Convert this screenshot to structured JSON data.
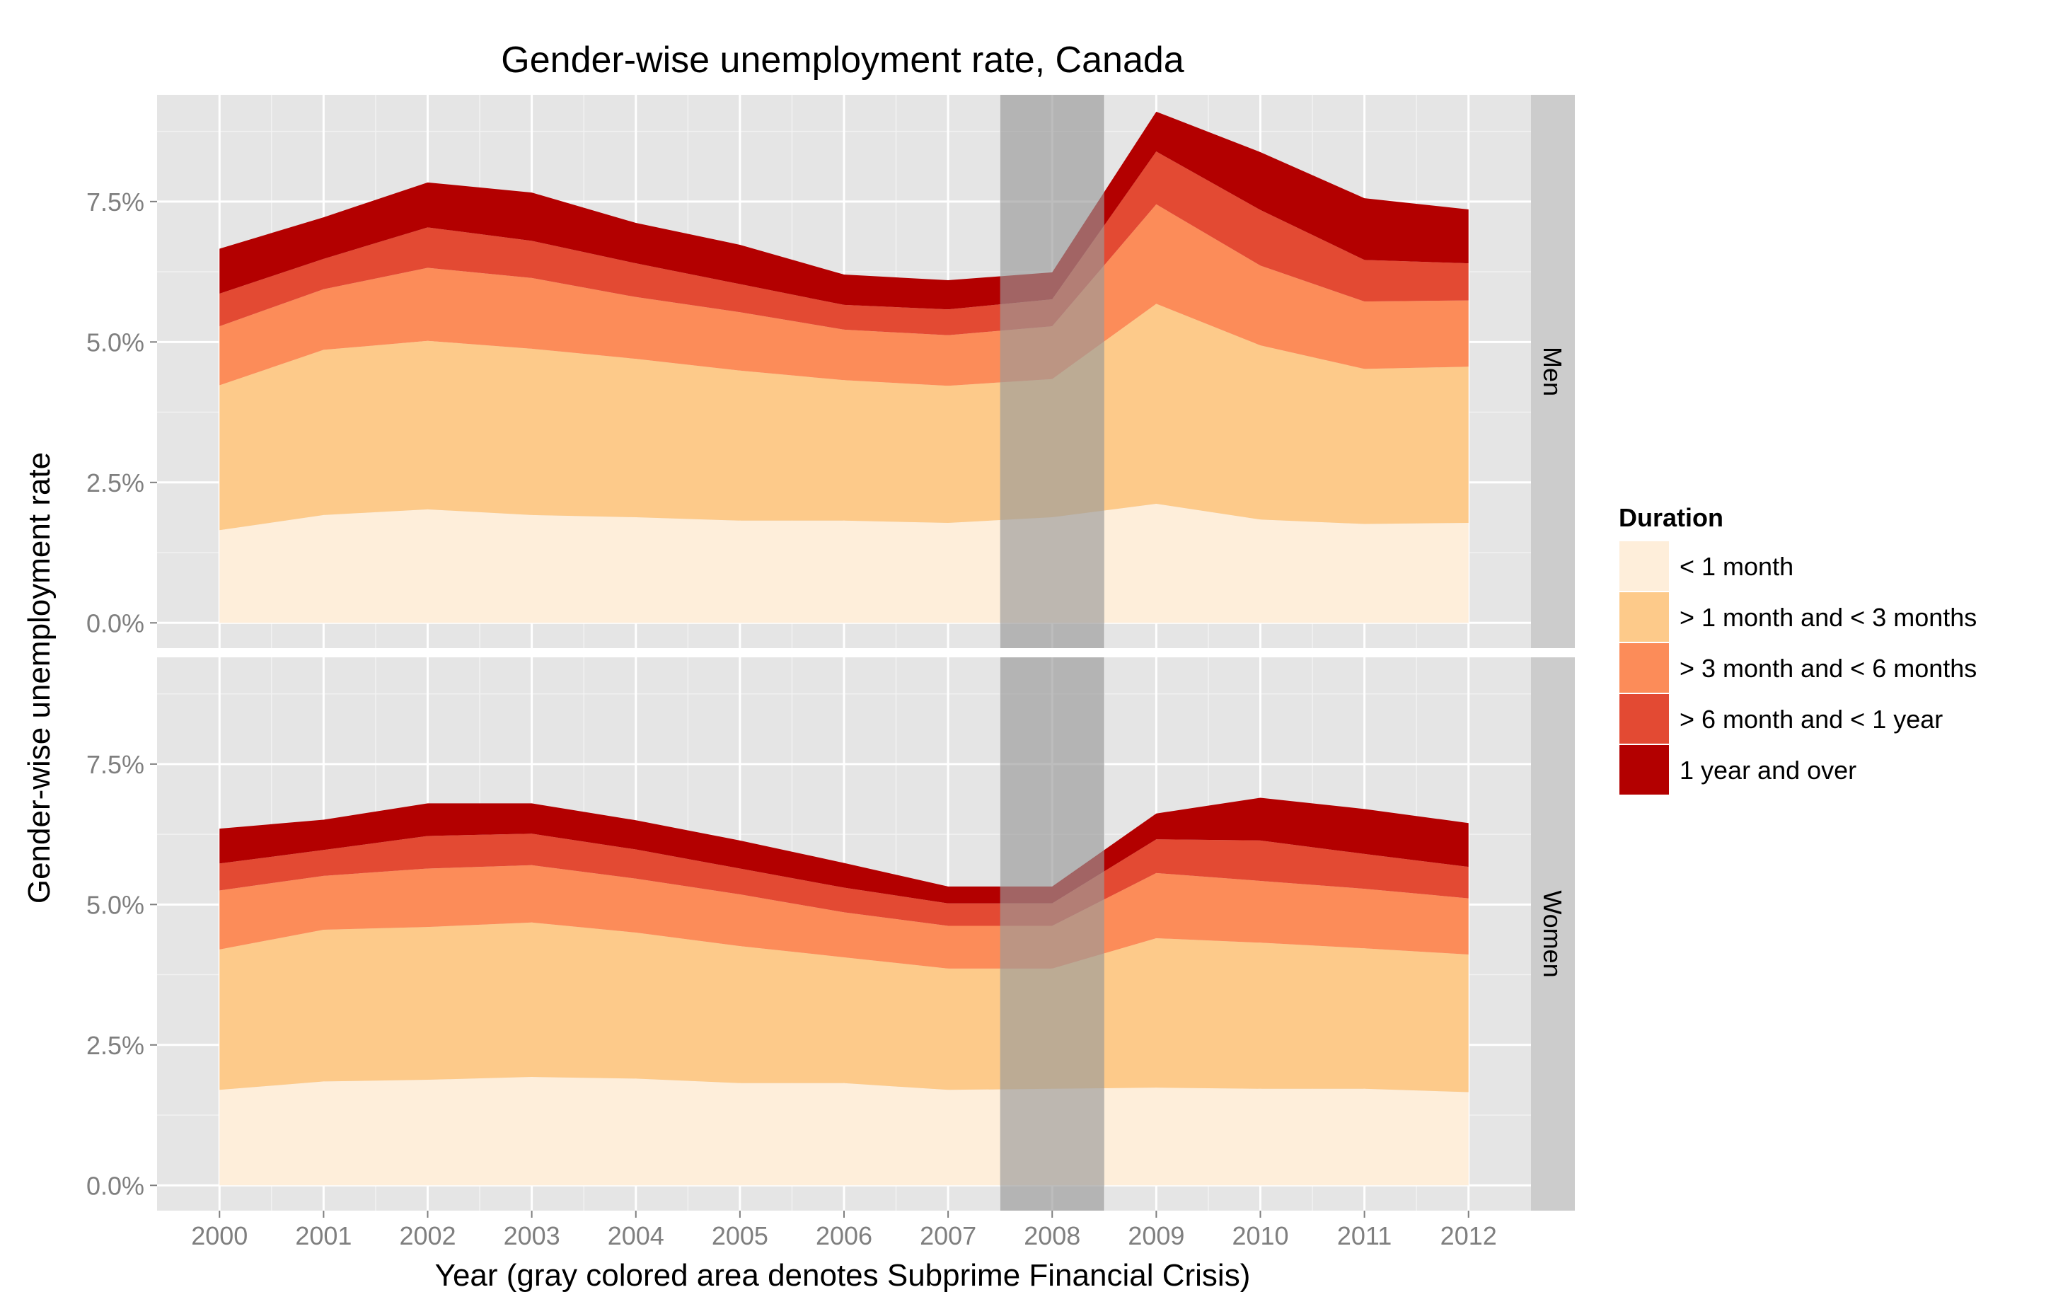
{
  "chart_data": {
    "type": "area",
    "stacked": true,
    "title": "Gender-wise unemployment rate, Canada",
    "xlabel": "Year (gray colored area denotes Subprime Financial Crisis)",
    "ylabel": "Gender-wise unemployment rate",
    "x": [
      2000,
      2001,
      2002,
      2003,
      2004,
      2005,
      2006,
      2007,
      2008,
      2009,
      2010,
      2011,
      2012
    ],
    "x_ticks": [
      "2000",
      "2001",
      "2002",
      "2003",
      "2004",
      "2005",
      "2006",
      "2007",
      "2008",
      "2009",
      "2010",
      "2011",
      "2012"
    ],
    "y_ticks": [
      "0.0%",
      "2.5%",
      "5.0%",
      "7.5%"
    ],
    "ylim": [
      -0.45,
      9.4
    ],
    "grid": true,
    "legend": {
      "title": "Duration",
      "position": "right",
      "items": [
        "< 1 month",
        "> 1 month and < 3 months",
        "> 3 month and < 6 months",
        "> 6 month and < 1 year",
        "1 year and over"
      ]
    },
    "series_colors": [
      "#FEEEDA",
      "#FDCA8A",
      "#FC8C59",
      "#E34A33",
      "#B30000"
    ],
    "highlight_region": {
      "from": 2007.5,
      "to": 2008.5,
      "color": "#999999"
    },
    "panels": [
      {
        "label": "Men",
        "series": [
          {
            "name": "< 1 month",
            "values": [
              1.65,
              1.92,
              2.02,
              1.92,
              1.88,
              1.82,
              1.82,
              1.78,
              1.88,
              2.12,
              1.84,
              1.76,
              1.78
            ]
          },
          {
            "name": "> 1 month and < 3 months",
            "values": [
              2.58,
              2.94,
              3.0,
              2.96,
              2.82,
              2.67,
              2.5,
              2.44,
              2.46,
              3.56,
              3.1,
              2.76,
              2.78
            ]
          },
          {
            "name": "> 3 month and < 6 months",
            "values": [
              1.05,
              1.08,
              1.3,
              1.26,
              1.1,
              1.04,
              0.9,
              0.9,
              0.94,
              1.77,
              1.42,
              1.2,
              1.18
            ]
          },
          {
            "name": "> 6 month and < 1 year",
            "values": [
              0.58,
              0.54,
              0.72,
              0.66,
              0.6,
              0.5,
              0.44,
              0.46,
              0.48,
              0.94,
              0.99,
              0.74,
              0.66
            ]
          },
          {
            "name": "1 year and over",
            "values": [
              0.8,
              0.74,
              0.8,
              0.86,
              0.72,
              0.7,
              0.54,
              0.52,
              0.48,
              0.71,
              1.03,
              1.1,
              0.96
            ]
          }
        ]
      },
      {
        "label": "Women",
        "series": [
          {
            "name": "< 1 month",
            "values": [
              1.7,
              1.85,
              1.88,
              1.93,
              1.9,
              1.82,
              1.82,
              1.7,
              1.72,
              1.74,
              1.72,
              1.72,
              1.66
            ]
          },
          {
            "name": "> 1 month and < 3 months",
            "values": [
              2.5,
              2.7,
              2.72,
              2.75,
              2.6,
              2.44,
              2.24,
              2.16,
              2.14,
              2.66,
              2.6,
              2.5,
              2.45
            ]
          },
          {
            "name": "> 3 month and < 6 months",
            "values": [
              1.05,
              0.96,
              1.04,
              1.02,
              0.96,
              0.92,
              0.8,
              0.76,
              0.76,
              1.16,
              1.1,
              1.06,
              1.0
            ]
          },
          {
            "name": "> 6 month and < 1 year",
            "values": [
              0.48,
              0.46,
              0.58,
              0.56,
              0.52,
              0.46,
              0.44,
              0.4,
              0.4,
              0.6,
              0.72,
              0.62,
              0.56
            ]
          },
          {
            "name": "1 year and over",
            "values": [
              0.62,
              0.54,
              0.58,
              0.54,
              0.52,
              0.5,
              0.44,
              0.3,
              0.3,
              0.46,
              0.76,
              0.8,
              0.78
            ]
          }
        ]
      }
    ]
  }
}
